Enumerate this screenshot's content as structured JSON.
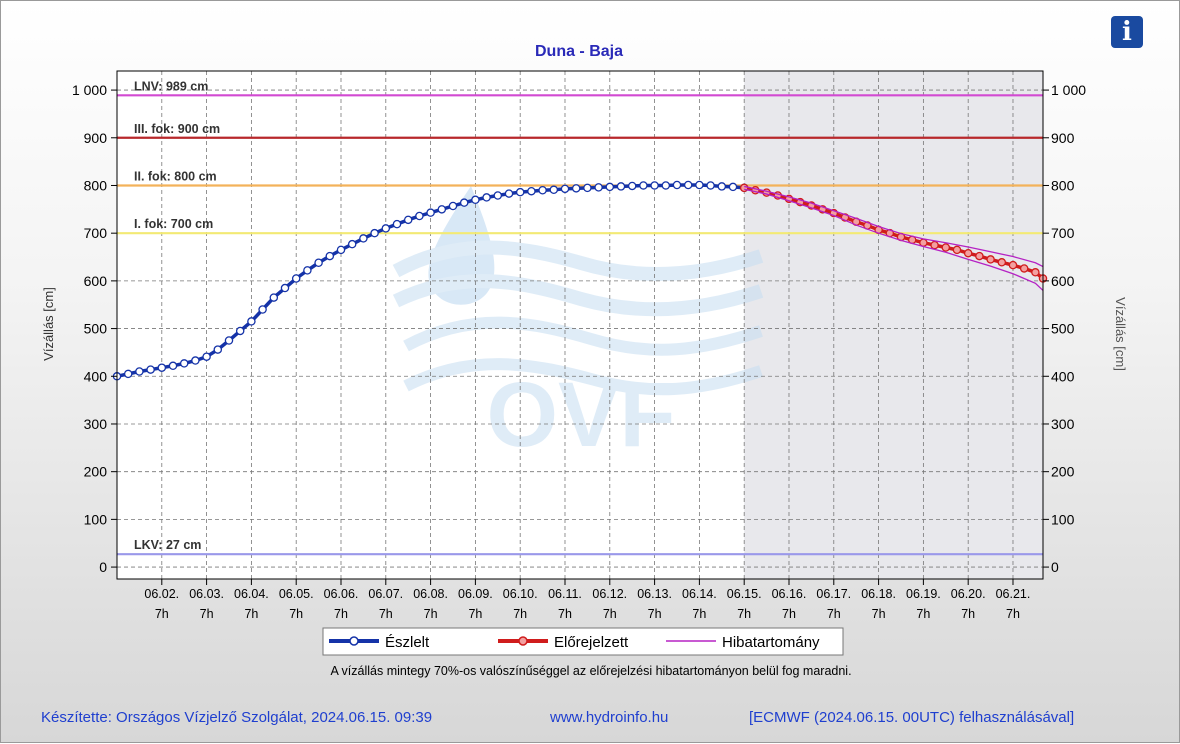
{
  "chart_data": {
    "type": "line",
    "title": "Duna - Baja",
    "ylabel_left": "Vízállás [cm]",
    "ylabel_right": "Vízállás [cm]",
    "ylim": [
      -25,
      1040
    ],
    "yticks": [
      0,
      100,
      200,
      300,
      400,
      500,
      600,
      700,
      800,
      900,
      1000
    ],
    "ytick_labels": [
      "0",
      "100",
      "200",
      "300",
      "400",
      "500",
      "600",
      "700",
      "800",
      "900",
      "1 000"
    ],
    "xlim": [
      0,
      20.67
    ],
    "xticks": [
      {
        "x": 1,
        "date": "06.02.",
        "hour": "7h"
      },
      {
        "x": 2,
        "date": "06.03.",
        "hour": "7h"
      },
      {
        "x": 3,
        "date": "06.04.",
        "hour": "7h"
      },
      {
        "x": 4,
        "date": "06.05.",
        "hour": "7h"
      },
      {
        "x": 5,
        "date": "06.06.",
        "hour": "7h"
      },
      {
        "x": 6,
        "date": "06.07.",
        "hour": "7h"
      },
      {
        "x": 7,
        "date": "06.08.",
        "hour": "7h"
      },
      {
        "x": 8,
        "date": "06.09.",
        "hour": "7h"
      },
      {
        "x": 9,
        "date": "06.10.",
        "hour": "7h"
      },
      {
        "x": 10,
        "date": "06.11.",
        "hour": "7h"
      },
      {
        "x": 11,
        "date": "06.12.",
        "hour": "7h"
      },
      {
        "x": 12,
        "date": "06.13.",
        "hour": "7h"
      },
      {
        "x": 13,
        "date": "06.14.",
        "hour": "7h"
      },
      {
        "x": 14,
        "date": "06.15.",
        "hour": "7h"
      },
      {
        "x": 15,
        "date": "06.16.",
        "hour": "7h"
      },
      {
        "x": 16,
        "date": "06.17.",
        "hour": "7h"
      },
      {
        "x": 17,
        "date": "06.18.",
        "hour": "7h"
      },
      {
        "x": 18,
        "date": "06.19.",
        "hour": "7h"
      },
      {
        "x": 19,
        "date": "06.20.",
        "hour": "7h"
      },
      {
        "x": 20,
        "date": "06.21.",
        "hour": "7h"
      }
    ],
    "forecast_region_start": 14,
    "grid": true,
    "thresholds": [
      {
        "label": "LNV: 989 cm",
        "value": 989,
        "color": "#d24ad2"
      },
      {
        "label": "III. fok: 900 cm",
        "value": 900,
        "color": "#b8282b"
      },
      {
        "label": "II. fok: 800 cm",
        "value": 800,
        "color": "#f3b25a"
      },
      {
        "label": "I. fok: 700 cm",
        "value": 700,
        "color": "#f3ea74"
      },
      {
        "label": "LKV: 27 cm",
        "value": 27,
        "color": "#9a98ea"
      }
    ],
    "series": [
      {
        "name": "Észlelt",
        "color": "#1533a8",
        "x": [
          0,
          0.25,
          0.5,
          0.75,
          1,
          1.25,
          1.5,
          1.75,
          2,
          2.25,
          2.5,
          2.75,
          3,
          3.25,
          3.5,
          3.75,
          4,
          4.25,
          4.5,
          4.75,
          5,
          5.25,
          5.5,
          5.75,
          6,
          6.25,
          6.5,
          6.75,
          7,
          7.25,
          7.5,
          7.75,
          8,
          8.25,
          8.5,
          8.75,
          9,
          9.25,
          9.5,
          9.75,
          10,
          10.25,
          10.5,
          10.75,
          11,
          11.25,
          11.5,
          11.75,
          12,
          12.25,
          12.5,
          12.75,
          13,
          13.25,
          13.5,
          13.75,
          14
        ],
        "y": [
          400,
          405,
          410,
          414,
          418,
          422,
          427,
          433,
          441,
          456,
          475,
          495,
          515,
          540,
          565,
          585,
          605,
          622,
          638,
          652,
          665,
          677,
          689,
          700,
          710,
          719,
          728,
          736,
          743,
          750,
          757,
          764,
          770,
          775,
          779,
          783,
          786,
          788,
          790,
          791,
          793,
          794,
          795,
          796,
          797,
          798,
          799,
          800,
          800,
          800,
          801,
          801,
          801,
          800,
          798,
          797,
          795
        ]
      },
      {
        "name": "Előrejelzett",
        "color": "#d01c1c",
        "x": [
          14,
          14.25,
          14.5,
          14.75,
          15,
          15.25,
          15.5,
          15.75,
          16,
          16.25,
          16.5,
          16.75,
          17,
          17.25,
          17.5,
          17.75,
          18,
          18.25,
          18.5,
          18.75,
          19,
          19.25,
          19.5,
          19.75,
          20,
          20.25,
          20.5,
          20.67
        ],
        "y": [
          795,
          790,
          785,
          779,
          772,
          765,
          758,
          750,
          742,
          733,
          724,
          716,
          707,
          700,
          692,
          686,
          680,
          675,
          670,
          665,
          658,
          652,
          645,
          639,
          633,
          626,
          618,
          605
        ]
      },
      {
        "name": "Hibatartomány",
        "color": "#b522c4",
        "x": [
          14,
          14.5,
          15,
          15.5,
          16,
          16.5,
          17,
          17.5,
          18,
          18.5,
          19,
          19.5,
          20,
          20.5,
          20.67
        ],
        "y_upper": [
          798,
          788,
          776,
          763,
          747,
          731,
          714,
          699,
          688,
          680,
          671,
          661,
          651,
          638,
          630
        ],
        "y_lower": [
          792,
          782,
          768,
          753,
          737,
          717,
          700,
          685,
          672,
          660,
          645,
          631,
          615,
          595,
          580
        ]
      }
    ]
  },
  "legend": {
    "observed": "Észlelt",
    "forecast": "Előrejelzett",
    "error_range": "Hibatartomány"
  },
  "note": "A vízállás mintegy 70%-os valószínűséggel az előrejelzési hibatartományon belül fog maradni.",
  "footer": {
    "author": "Készítette: Országos Vízjelző Szolgálat, 2024.06.15. 09:39",
    "website": "www.hydroinfo.hu",
    "source": "[ECMWF (2024.06.15. 00UTC) felhasználásával]"
  },
  "watermark": "OVF",
  "info_icon": "info-icon"
}
